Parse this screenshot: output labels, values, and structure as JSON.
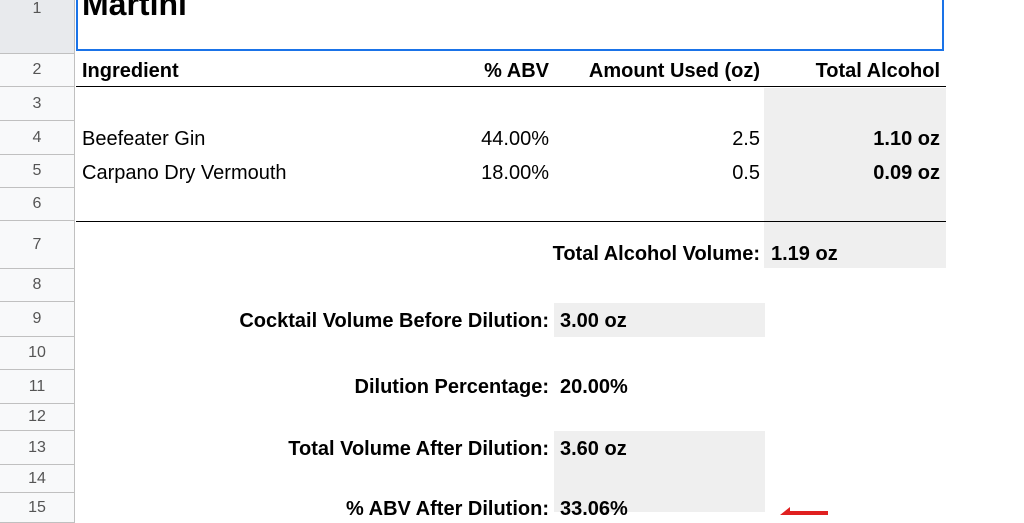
{
  "row_numbers": [
    "1",
    "2",
    "3",
    "4",
    "5",
    "6",
    "7",
    "8",
    "9",
    "10",
    "11",
    "12",
    "13",
    "14",
    "15"
  ],
  "title": "Martini",
  "headers": {
    "ingredient": "Ingredient",
    "abv": "% ABV",
    "amount": "Amount Used (oz)",
    "total_alcohol": "Total Alcohol"
  },
  "ingredients": [
    {
      "name": "Beefeater Gin",
      "abv": "44.00%",
      "amount": "2.5",
      "total": "1.10 oz"
    },
    {
      "name": "Carpano Dry Vermouth",
      "abv": "18.00%",
      "amount": "0.5",
      "total": "0.09 oz"
    }
  ],
  "summary": {
    "total_alcohol_volume_label": "Total Alcohol Volume:",
    "total_alcohol_volume_value": "1.19 oz",
    "volume_before_label": "Cocktail Volume Before Dilution:",
    "volume_before_value": "3.00 oz",
    "dilution_label": "Dilution Percentage:",
    "dilution_value": "20.00%",
    "volume_after_label": "Total Volume After Dilution:",
    "volume_after_value": "3.60 oz",
    "abv_after_label": "% ABV After Dilution:",
    "abv_after_value": "33.06%"
  },
  "colors": {
    "selection": "#1a73e8",
    "shaded_cell": "#efefef",
    "arrow": "#e02020",
    "row_header_bg": "#f8f9fa"
  },
  "icons": {
    "pointer": "red-arrow-icon"
  }
}
